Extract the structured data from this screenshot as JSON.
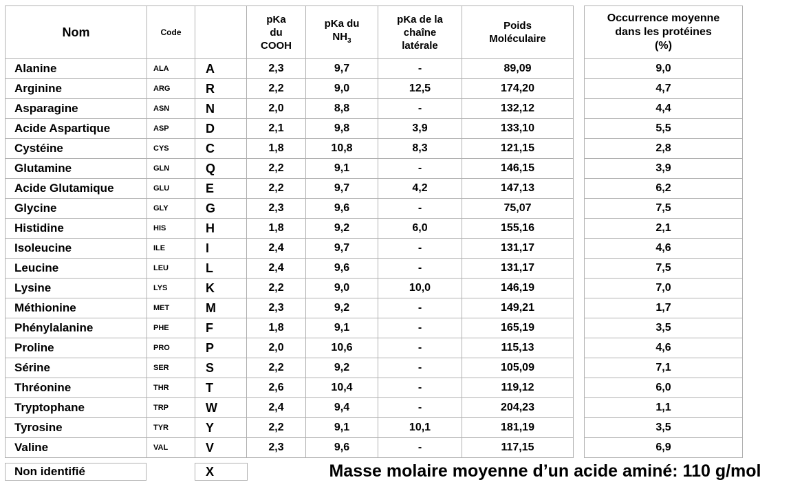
{
  "table": {
    "headers": {
      "nom": "Nom",
      "code": "Code",
      "letter": "",
      "pka_cooh": "pKa\ndu\nCOOH",
      "pka_nh3": {
        "line1": "pKa du",
        "base": "NH",
        "sub": "3"
      },
      "pka_side": "pKa de la\nchaîne\nlatérale",
      "poids": "Poids\nMoléculaire",
      "occurrence": "Occurrence moyenne\ndans les protéines\n(%)"
    },
    "rows": [
      [
        "Alanine",
        "ALA",
        "A",
        "2,3",
        "9,7",
        "-",
        "89,09",
        "9,0"
      ],
      [
        "Arginine",
        "ARG",
        "R",
        "2,2",
        "9,0",
        "12,5",
        "174,20",
        "4,7"
      ],
      [
        "Asparagine",
        "ASN",
        "N",
        "2,0",
        "8,8",
        "-",
        "132,12",
        "4,4"
      ],
      [
        "Acide Aspartique",
        "ASP",
        "D",
        "2,1",
        "9,8",
        "3,9",
        "133,10",
        "5,5"
      ],
      [
        "Cystéine",
        "CYS",
        "C",
        "1,8",
        "10,8",
        "8,3",
        "121,15",
        "2,8"
      ],
      [
        "Glutamine",
        "GLN",
        "Q",
        "2,2",
        "9,1",
        "-",
        "146,15",
        "3,9"
      ],
      [
        "Acide Glutamique",
        "GLU",
        "E",
        "2,2",
        "9,7",
        "4,2",
        "147,13",
        "6,2"
      ],
      [
        "Glycine",
        "GLY",
        "G",
        "2,3",
        "9,6",
        "-",
        "75,07",
        "7,5"
      ],
      [
        "Histidine",
        "HIS",
        "H",
        "1,8",
        "9,2",
        "6,0",
        "155,16",
        "2,1"
      ],
      [
        "Isoleucine",
        "ILE",
        "I",
        "2,4",
        "9,7",
        "-",
        "131,17",
        "4,6"
      ],
      [
        "Leucine",
        "LEU",
        "L",
        "2,4",
        "9,6",
        "-",
        "131,17",
        "7,5"
      ],
      [
        "Lysine",
        "LYS",
        "K",
        "2,2",
        "9,0",
        "10,0",
        "146,19",
        "7,0"
      ],
      [
        "Méthionine",
        "MET",
        "M",
        "2,3",
        "9,2",
        "-",
        "149,21",
        "1,7"
      ],
      [
        "Phénylalanine",
        "PHE",
        "F",
        "1,8",
        "9,1",
        "-",
        "165,19",
        "3,5"
      ],
      [
        "Proline",
        "PRO",
        "P",
        "2,0",
        "10,6",
        "-",
        "115,13",
        "4,6"
      ],
      [
        "Sérine",
        "SER",
        "S",
        "2,2",
        "9,2",
        "-",
        "105,09",
        "7,1"
      ],
      [
        "Thréonine",
        "THR",
        "T",
        "2,6",
        "10,4",
        "-",
        "119,12",
        "6,0"
      ],
      [
        "Tryptophane",
        "TRP",
        "W",
        "2,4",
        "9,4",
        "-",
        "204,23",
        "1,1"
      ],
      [
        "Tyrosine",
        "TYR",
        "Y",
        "2,2",
        "9,1",
        "10,1",
        "181,19",
        "3,5"
      ],
      [
        "Valine",
        "VAL",
        "V",
        "2,3",
        "9,6",
        "-",
        "117,15",
        "6,9"
      ]
    ]
  },
  "unidentified": {
    "nom": "Non identifié",
    "letter": "X"
  },
  "footer": {
    "note": "Masse molaire moyenne d’un acide aminé: 110 g/mol"
  }
}
